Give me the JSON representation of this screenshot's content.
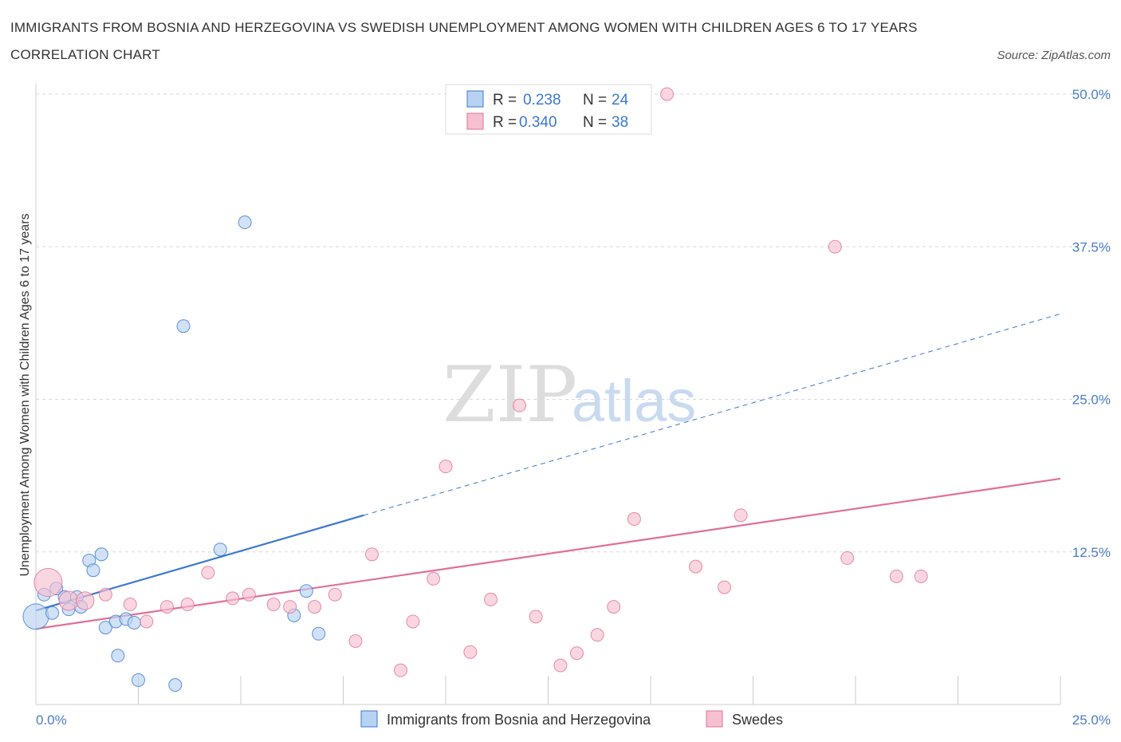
{
  "title": "IMMIGRANTS FROM BOSNIA AND HERZEGOVINA VS SWEDISH UNEMPLOYMENT AMONG WOMEN WITH CHILDREN AGES 6 TO 17 YEARS CORRELATION CHART",
  "source": "Source: ZipAtlas.com",
  "watermark": {
    "zip": "ZIP",
    "atlas": "atlas"
  },
  "colors": {
    "blue": "#3a78d0",
    "blue_fill": "#b8d2f2",
    "pink": "#e07098",
    "pink_fill": "#f6c0d0",
    "tick_text": "#4a7cc9",
    "grid": "#d8d8d8"
  },
  "legend": {
    "rows": [
      {
        "r_label": "R =",
        "r_value": "0.238",
        "n_label": "N =",
        "n_value": "24"
      },
      {
        "r_label": "R =",
        "r_value": "0.340",
        "n_label": "N =",
        "n_value": "38"
      }
    ]
  },
  "bottom_legend": [
    "Immigrants from Bosnia and Herzegovina",
    "Swedes"
  ],
  "chart_data": {
    "type": "scatter",
    "xlabel": "",
    "ylabel": "Unemployment Among Women with Children Ages 6 to 17 years",
    "xlim": [
      0,
      25
    ],
    "ylim": [
      0,
      50
    ],
    "x_tick_labels": [
      "0.0%",
      "25.0%"
    ],
    "y_ticks": [
      12.5,
      25.0,
      37.5,
      50.0
    ],
    "y_tick_labels": [
      "12.5%",
      "25.0%",
      "37.5%",
      "50.0%"
    ],
    "grid": true,
    "series": [
      {
        "name": "Immigrants from Bosnia and Herzegovina",
        "color": "blue",
        "points": [
          {
            "x": 0.0,
            "y": 7.2,
            "s": 2
          },
          {
            "x": 0.2,
            "y": 9.0
          },
          {
            "x": 0.4,
            "y": 7.5
          },
          {
            "x": 0.5,
            "y": 9.5
          },
          {
            "x": 0.7,
            "y": 8.8
          },
          {
            "x": 0.8,
            "y": 7.8
          },
          {
            "x": 1.0,
            "y": 8.8
          },
          {
            "x": 1.1,
            "y": 8.0
          },
          {
            "x": 1.3,
            "y": 11.8
          },
          {
            "x": 1.4,
            "y": 11.0
          },
          {
            "x": 1.6,
            "y": 12.3
          },
          {
            "x": 1.7,
            "y": 6.3
          },
          {
            "x": 1.95,
            "y": 6.8
          },
          {
            "x": 2.0,
            "y": 4.0
          },
          {
            "x": 2.2,
            "y": 7.0
          },
          {
            "x": 2.4,
            "y": 6.7
          },
          {
            "x": 2.5,
            "y": 2.0
          },
          {
            "x": 3.4,
            "y": 1.6
          },
          {
            "x": 3.6,
            "y": 31.0
          },
          {
            "x": 4.5,
            "y": 12.7
          },
          {
            "x": 5.1,
            "y": 39.5
          },
          {
            "x": 6.3,
            "y": 7.3
          },
          {
            "x": 6.6,
            "y": 9.3
          },
          {
            "x": 6.9,
            "y": 5.8
          }
        ],
        "trend": {
          "x1": 0.0,
          "y1": 7.7,
          "x2": 8.0,
          "y2": 15.5,
          "dash_x2": 25.0,
          "dash_y2": 32.0
        }
      },
      {
        "name": "Swedes",
        "color": "pink",
        "points": [
          {
            "x": 0.3,
            "y": 10.0,
            "s": 2.2
          },
          {
            "x": 0.8,
            "y": 8.5,
            "s": 1.5
          },
          {
            "x": 1.2,
            "y": 8.5,
            "s": 1.4
          },
          {
            "x": 1.7,
            "y": 9.0
          },
          {
            "x": 2.3,
            "y": 8.2
          },
          {
            "x": 2.7,
            "y": 6.8
          },
          {
            "x": 3.2,
            "y": 8.0
          },
          {
            "x": 3.7,
            "y": 8.2
          },
          {
            "x": 4.2,
            "y": 10.8
          },
          {
            "x": 4.8,
            "y": 8.7
          },
          {
            "x": 5.2,
            "y": 9.0
          },
          {
            "x": 5.8,
            "y": 8.2
          },
          {
            "x": 6.2,
            "y": 8.0
          },
          {
            "x": 6.8,
            "y": 8.0
          },
          {
            "x": 7.3,
            "y": 9.0
          },
          {
            "x": 7.8,
            "y": 5.2
          },
          {
            "x": 8.2,
            "y": 12.3
          },
          {
            "x": 8.9,
            "y": 2.8
          },
          {
            "x": 9.2,
            "y": 6.8
          },
          {
            "x": 9.7,
            "y": 10.3
          },
          {
            "x": 10.0,
            "y": 19.5
          },
          {
            "x": 10.6,
            "y": 4.3
          },
          {
            "x": 11.1,
            "y": 8.6
          },
          {
            "x": 11.8,
            "y": 24.5
          },
          {
            "x": 12.2,
            "y": 7.2
          },
          {
            "x": 12.8,
            "y": 3.2
          },
          {
            "x": 13.2,
            "y": 4.2
          },
          {
            "x": 13.7,
            "y": 5.7
          },
          {
            "x": 14.1,
            "y": 8.0
          },
          {
            "x": 14.6,
            "y": 15.2
          },
          {
            "x": 15.4,
            "y": 50.0
          },
          {
            "x": 16.1,
            "y": 11.3
          },
          {
            "x": 16.8,
            "y": 9.6
          },
          {
            "x": 17.2,
            "y": 15.5
          },
          {
            "x": 19.5,
            "y": 37.5
          },
          {
            "x": 19.8,
            "y": 12.0
          },
          {
            "x": 21.0,
            "y": 10.5
          },
          {
            "x": 21.6,
            "y": 10.5
          }
        ],
        "trend": {
          "x1": 0.0,
          "y1": 6.2,
          "x2": 25.0,
          "y2": 18.5
        }
      }
    ]
  }
}
